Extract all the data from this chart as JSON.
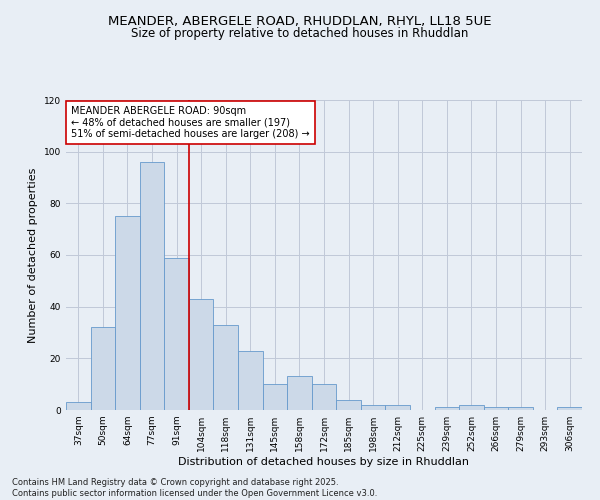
{
  "title1": "MEANDER, ABERGELE ROAD, RHUDDLAN, RHYL, LL18 5UE",
  "title2": "Size of property relative to detached houses in Rhuddlan",
  "xlabel": "Distribution of detached houses by size in Rhuddlan",
  "ylabel": "Number of detached properties",
  "categories": [
    "37sqm",
    "50sqm",
    "64sqm",
    "77sqm",
    "91sqm",
    "104sqm",
    "118sqm",
    "131sqm",
    "145sqm",
    "158sqm",
    "172sqm",
    "185sqm",
    "198sqm",
    "212sqm",
    "225sqm",
    "239sqm",
    "252sqm",
    "266sqm",
    "279sqm",
    "293sqm",
    "306sqm"
  ],
  "values": [
    3,
    32,
    75,
    96,
    59,
    43,
    33,
    23,
    10,
    13,
    10,
    4,
    2,
    2,
    0,
    1,
    2,
    1,
    1,
    0,
    1
  ],
  "bar_color": "#ccd9e8",
  "bar_edge_color": "#6699cc",
  "background_color": "#e8eef5",
  "grid_color": "#c0c8d8",
  "vline_x_idx": 4,
  "vline_color": "#cc0000",
  "annotation_text": "MEANDER ABERGELE ROAD: 90sqm\n← 48% of detached houses are smaller (197)\n51% of semi-detached houses are larger (208) →",
  "annotation_box_color": "#ffffff",
  "annotation_box_edge": "#cc0000",
  "ylim": [
    0,
    120
  ],
  "yticks": [
    0,
    20,
    40,
    60,
    80,
    100,
    120
  ],
  "footer": "Contains HM Land Registry data © Crown copyright and database right 2025.\nContains public sector information licensed under the Open Government Licence v3.0.",
  "title_fontsize": 9.5,
  "subtitle_fontsize": 8.5,
  "axis_label_fontsize": 7.5,
  "ylabel_fontsize": 8,
  "tick_fontsize": 6.5,
  "annotation_fontsize": 7,
  "footer_fontsize": 6
}
